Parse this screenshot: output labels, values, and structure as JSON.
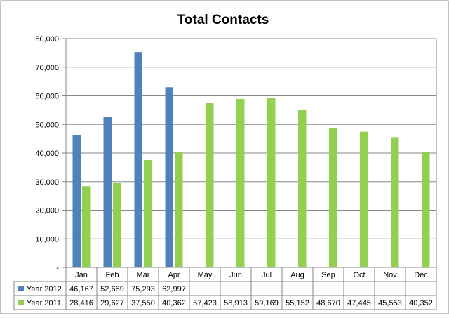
{
  "chart_data": {
    "type": "bar",
    "title": "Total Contacts",
    "xlabel": "",
    "ylabel": "",
    "ylim": [
      0,
      80000
    ],
    "yticks": [
      0,
      10000,
      20000,
      30000,
      40000,
      50000,
      60000,
      70000,
      80000
    ],
    "ytick_labels": [
      "-",
      "10,000",
      "20,000",
      "30,000",
      "40,000",
      "50,000",
      "60,000",
      "70,000",
      "80,000"
    ],
    "grid": true,
    "legend_placement": "data-table-left",
    "categories": [
      "Jan",
      "Feb",
      "Mar",
      "Apr",
      "May",
      "Jun",
      "Jul",
      "Aug",
      "Sep",
      "Oct",
      "Nov",
      "Dec"
    ],
    "series": [
      {
        "name": "Year 2012",
        "color": "#4f81bd",
        "values": [
          46167,
          52689,
          75293,
          62997,
          null,
          null,
          null,
          null,
          null,
          null,
          null,
          null
        ],
        "labels": [
          "46,167",
          "52,689",
          "75,293",
          "62,997",
          "",
          "",
          "",
          "",
          "",
          "",
          "",
          ""
        ]
      },
      {
        "name": "Year 2011",
        "color": "#92d050",
        "values": [
          28416,
          29627,
          37550,
          40362,
          57423,
          58913,
          59169,
          55152,
          48670,
          47445,
          45553,
          40352
        ],
        "labels": [
          "28,416",
          "29,627",
          "37,550",
          "40,362",
          "57,423",
          "58,913",
          "59,169",
          "55,152",
          "48,670",
          "47,445",
          "45,553",
          "40,352"
        ]
      }
    ]
  }
}
